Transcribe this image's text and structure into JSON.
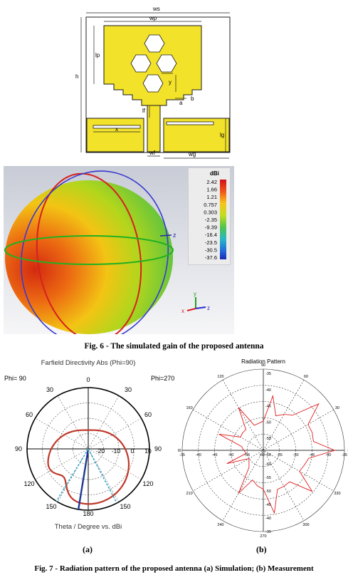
{
  "fig_antenna": {
    "labels": {
      "ws": "ws",
      "wp": "wp",
      "lp": "lp",
      "h": "h",
      "y": "y",
      "a": "a",
      "b": "b",
      "lf": "lf",
      "x": "x",
      "lg": "lg",
      "wf": "wf",
      "wg": "wg"
    },
    "colors": {
      "patch": "#f3e22a",
      "outline": "#1a1a1a"
    }
  },
  "fig6": {
    "legend_title": "dBi",
    "legend_values": [
      "2.42",
      "1.66",
      "1.21",
      "0.757",
      "0.303",
      "-2.35",
      "-9.39",
      "-16.4",
      "-23.5",
      "-30.5",
      "-37.6"
    ],
    "axis_labels": {
      "z": "z",
      "x": "x",
      "y": "y"
    },
    "caption": "Fig. 6 - The simulated gain of the proposed antenna"
  },
  "fig7a": {
    "title": "Farfield Directivity Abs (Phi=90)",
    "phi_left": "Phi= 90",
    "phi_right": "Phi=270",
    "angle_labels": {
      "top": "0",
      "tl30": "30",
      "tr30": "30",
      "l60": "60",
      "r60": "60",
      "l90": "90",
      "r90": "90",
      "l120": "120",
      "r120": "120",
      "l150": "150",
      "r150": "150",
      "bottom": "180"
    },
    "radial_labels": [
      "-20",
      "-10",
      "0",
      "10"
    ],
    "xlabel": "Theta / Degree vs. dBi",
    "sub_label": "(a)",
    "colors": {
      "pattern": "#c0392b",
      "beam": "#1f3a93",
      "beam_edge": "#3ba9c9",
      "grid": "#555555"
    }
  },
  "fig7b": {
    "title": "Radiation Pattern",
    "angle_labels": {
      "a90": "90",
      "a60": "60",
      "a30": "30",
      "a0": "0",
      "a330": "330",
      "a300": "300",
      "a270": "270",
      "a240": "240",
      "a210": "210",
      "a180": "180",
      "a150": "150",
      "a120": "120"
    },
    "top_ticks": [
      "-35",
      "-40",
      "-45",
      "-50",
      "-55",
      "-60"
    ],
    "bottom_ticks": [
      "-60",
      "-55",
      "-50",
      "-45",
      "-40",
      "-35"
    ],
    "h_ticks_left": [
      "-35",
      "-40",
      "-45",
      "-50",
      "-55"
    ],
    "h_ticks_right": [
      "-55",
      "-50",
      "-45",
      "-40",
      "-35"
    ],
    "center_label": "-60",
    "sub_label": "(b)",
    "colors": {
      "pattern": "#e02020",
      "grid": "#333333"
    }
  },
  "fig7_caption": "Fig. 7 - Radiation pattern of the proposed antenna (a) Simulation; (b) Measurement"
}
